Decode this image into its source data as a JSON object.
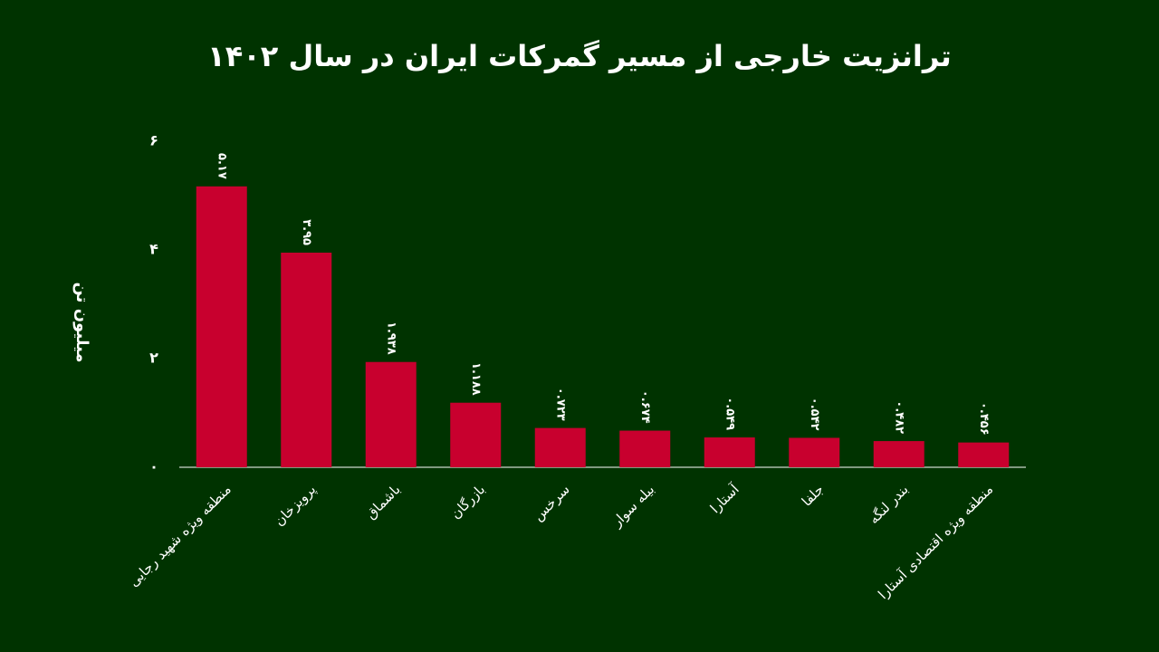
{
  "chart_data": {
    "type": "bar",
    "title": "ترانزیت خارجی از مسیر گمرکات ایران در سال ۱۴۰۲",
    "y_label": "میلیون تن",
    "categories": [
      "منطقه ویژه شهید رجایی",
      "پرویزخان",
      "باشماق",
      "بازرگان",
      "سرخس",
      "بیله سوار",
      "آستارا",
      "جلفا",
      "بندر لنگه",
      "منطقه ویژه اقتصادی آستارا"
    ],
    "values": [
      5.17,
      3.95,
      1.938,
      1.188,
      0.723,
      0.674,
      0.549,
      0.542,
      0.482,
      0.456
    ],
    "value_labels": [
      "۵.۱۷",
      "۳.۹۵",
      "۱.۹۳۸",
      "۱.۱۸۸",
      "۰.۷۲۳",
      "۰.۶۷۴",
      "۰.۵۴۹",
      "۰.۵۴۲",
      "۰.۴۸۲",
      "۰.۴۵۶"
    ],
    "color": "#c8002e",
    "ylim": [
      0,
      6
    ],
    "yticks": [
      {
        "value": 0,
        "label": "۰"
      },
      {
        "value": 2,
        "label": "۲"
      },
      {
        "value": 4,
        "label": "۴"
      },
      {
        "value": 6,
        "label": "۶"
      }
    ],
    "grid": false
  }
}
